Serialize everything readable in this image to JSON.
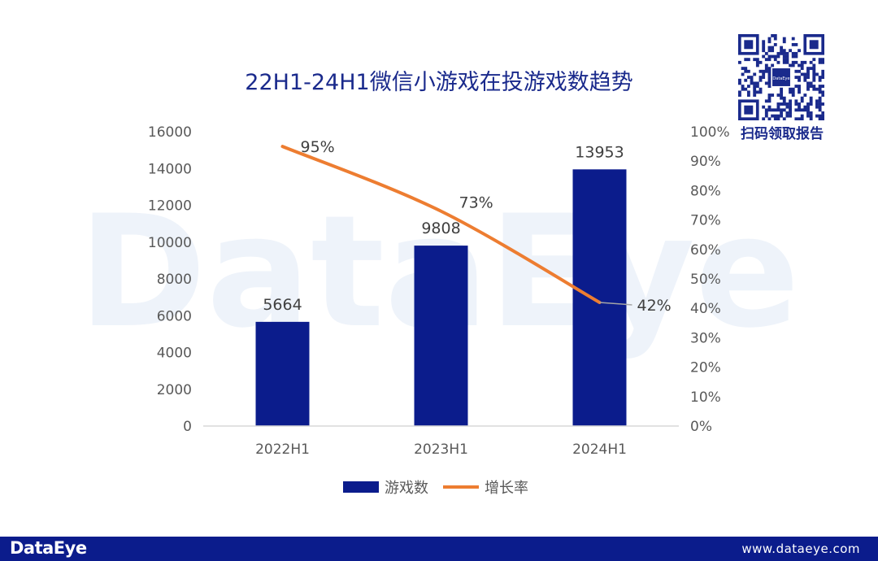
{
  "qr": {
    "label": "扫码领取报告",
    "center_text": "DataEye"
  },
  "footer": {
    "logo": "DataEye",
    "url": "www.dataeye.com"
  },
  "watermark": "DataEye",
  "colors": {
    "bar": "#0b1c8c",
    "line": "#ed7d31",
    "title": "#1a2a8c",
    "axis_text": "#595959"
  },
  "chart_data": {
    "type": "bar",
    "title": "22H1-24H1微信小游戏在投游戏数趋势",
    "categories": [
      "2022H1",
      "2023H1",
      "2024H1"
    ],
    "series": [
      {
        "name": "游戏数",
        "type": "bar",
        "axis": "left",
        "values": [
          5664,
          9808,
          13953
        ],
        "labels": [
          "5664",
          "9808",
          "13953"
        ]
      },
      {
        "name": "增长率",
        "type": "line",
        "axis": "right",
        "values": [
          0.95,
          0.73,
          0.42
        ],
        "labels": [
          "95%",
          "73%",
          "42%"
        ]
      }
    ],
    "ylim_left": [
      0,
      16000
    ],
    "yticks_left": [
      "0",
      "2000",
      "4000",
      "6000",
      "8000",
      "10000",
      "12000",
      "14000",
      "16000"
    ],
    "ylim_right": [
      0,
      1
    ],
    "yticks_right": [
      "0%",
      "10%",
      "20%",
      "30%",
      "40%",
      "50%",
      "60%",
      "70%",
      "80%",
      "90%",
      "100%"
    ],
    "legend": "bottom",
    "grid": false
  }
}
